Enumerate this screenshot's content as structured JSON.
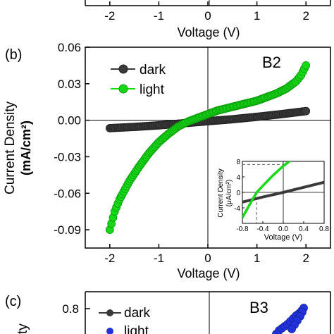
{
  "top_panel": {
    "x_ticks": [
      -2,
      -1,
      0,
      1,
      2
    ],
    "xlabel": "Voltage (V)"
  },
  "panel_b": {
    "label": "(b)",
    "tag": "B2",
    "ylabel_line1": "Current Density",
    "ylabel_line2": "(mA/cm²)",
    "xlabel": "Voltage (V)",
    "legend": [
      "dark",
      "light"
    ]
  },
  "inset": {
    "ylabel_line1": "Current Density",
    "ylabel_line2": "(μA/cm²)",
    "xlabel": "Voltage (V)"
  },
  "panel_c": {
    "label": "(c)",
    "tag": "B3",
    "y_tick_visible": "0.8",
    "legend": [
      "dark",
      "light"
    ]
  },
  "colors": {
    "dark": "#3a3a3a",
    "light": "#16d916",
    "panel_c_light": "#2233dd"
  },
  "chart_data": [
    {
      "type": "scatter",
      "panel": "b",
      "xlim": [
        -2.5,
        2.5
      ],
      "ylim": [
        -0.105,
        0.06
      ],
      "x_ticks": [
        -2,
        -1,
        0,
        1,
        2
      ],
      "y_ticks": [
        0.06,
        0.03,
        0.0,
        -0.03,
        -0.06,
        -0.09
      ],
      "y_tick_labels": [
        "0.06",
        "0.03",
        "0.00",
        "-0.03",
        "-0.06",
        "-0.09"
      ],
      "legend_position": "top-left",
      "series": [
        {
          "name": "dark",
          "x": [
            -2.0,
            -1.5,
            -1.0,
            -0.5,
            0.0,
            0.5,
            1.0,
            1.5,
            2.0
          ],
          "y": [
            -0.0065,
            -0.0055,
            -0.0042,
            -0.0025,
            -0.0008,
            0.0008,
            0.0028,
            0.005,
            0.0075
          ]
        },
        {
          "name": "light",
          "x": [
            -2.0,
            -1.9,
            -1.8,
            -1.6,
            -1.4,
            -1.2,
            -1.0,
            -0.8,
            -0.6,
            -0.4,
            -0.2,
            0.0,
            0.2,
            0.4,
            0.6,
            0.8,
            1.0,
            1.2,
            1.4,
            1.6,
            1.8,
            1.9,
            2.0
          ],
          "y": [
            -0.09,
            -0.075,
            -0.065,
            -0.05,
            -0.038,
            -0.027,
            -0.018,
            -0.011,
            -0.005,
            -0.001,
            0.002,
            0.005,
            0.008,
            0.01,
            0.012,
            0.014,
            0.016,
            0.019,
            0.022,
            0.026,
            0.032,
            0.037,
            0.045
          ]
        }
      ]
    },
    {
      "type": "line",
      "panel": "b-inset",
      "xlim": [
        -0.8,
        0.8
      ],
      "ylim": [
        -8,
        8
      ],
      "x_ticks": [
        -0.8,
        -0.4,
        0.0,
        0.4,
        0.8
      ],
      "x_tick_labels": [
        "-0.8",
        "-0.4",
        "0.0",
        "0.4",
        "0.8"
      ],
      "y_ticks": [
        8,
        4,
        0,
        -4
      ],
      "y_tick_labels": [
        "8",
        "4",
        "0",
        "-4"
      ],
      "series": [
        {
          "name": "dark",
          "x": [
            -0.8,
            -0.4,
            0.0,
            0.4,
            0.8
          ],
          "y": [
            -2.5,
            -1.2,
            0.0,
            1.3,
            2.6
          ]
        },
        {
          "name": "light",
          "x": [
            -0.8,
            -0.6,
            -0.52,
            -0.4,
            -0.2,
            0.0,
            0.2
          ],
          "y": [
            -6.5,
            -1.8,
            0.0,
            1.7,
            4.4,
            6.8,
            8.8
          ]
        }
      ],
      "guides": {
        "voc": -0.52,
        "jsc": 7.2
      }
    }
  ]
}
